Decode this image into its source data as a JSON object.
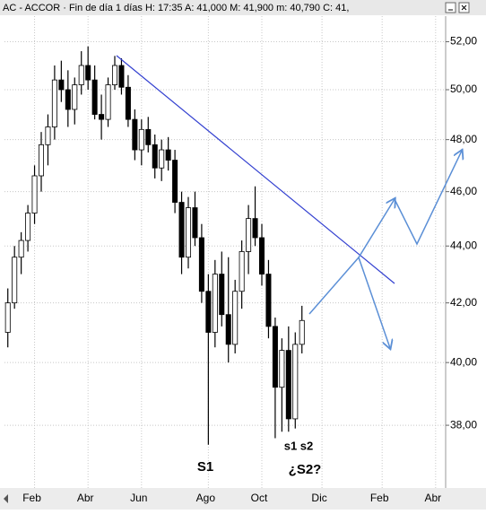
{
  "chart_data": {
    "type": "candlestick",
    "title": "AC - ACCOR · Fin de día 1 días  H: 17:35  A: 41,000  M: 41,900  m: 40,790  C: 41,",
    "categories": [
      null,
      null,
      null,
      null,
      "Feb",
      null,
      null,
      null,
      null,
      null,
      null,
      null,
      "Abr",
      null,
      null,
      null,
      null,
      null,
      null,
      null,
      "Jun",
      null,
      null,
      null,
      null,
      null,
      null,
      null,
      null,
      null,
      "Ago",
      null,
      null,
      null,
      null,
      null,
      null,
      null,
      "Oct",
      null,
      null,
      null,
      null,
      null,
      null,
      null,
      null,
      "Dic",
      null,
      null,
      null,
      null,
      null,
      null,
      null,
      null,
      "Feb",
      null,
      null,
      null,
      null,
      null,
      null,
      null,
      "Abr",
      null
    ],
    "open": [
      41.0,
      42.0,
      43.6,
      44.2,
      45.2,
      46.6,
      47.8,
      48.5,
      50.4,
      50.0,
      49.2,
      50.2,
      51.0,
      50.4,
      49.0,
      48.8,
      50.2,
      51.0,
      50.1,
      48.8,
      47.6,
      48.4,
      47.8,
      46.9,
      47.6,
      47.2,
      45.6,
      43.6,
      45.4,
      44.3,
      42.4,
      41.0,
      43.0,
      41.6,
      40.6,
      42.4,
      43.8,
      45.0,
      44.3,
      43.0,
      41.2,
      39.2,
      40.4,
      38.2,
      40.6,
      null,
      null,
      null,
      null,
      null,
      null,
      null,
      null,
      null,
      null,
      null,
      null,
      null,
      null,
      null,
      null,
      null,
      null,
      null,
      null,
      null
    ],
    "high": [
      42.5,
      44.0,
      44.5,
      45.5,
      47.0,
      48.3,
      49.0,
      51.0,
      51.2,
      50.8,
      50.5,
      51.6,
      51.8,
      51.0,
      49.8,
      50.5,
      51.4,
      51.3,
      50.6,
      49.2,
      48.8,
      48.9,
      48.2,
      48.0,
      48.1,
      47.6,
      46.0,
      45.8,
      46.0,
      44.8,
      43.0,
      43.5,
      43.8,
      43.6,
      42.8,
      44.2,
      45.5,
      46.2,
      44.8,
      43.5,
      41.5,
      40.8,
      41.2,
      41.0,
      41.9,
      null,
      null,
      null,
      null,
      null,
      null,
      null,
      null,
      null,
      null,
      null,
      null,
      null,
      null,
      null,
      null,
      null,
      null,
      null,
      null,
      null
    ],
    "low": [
      40.5,
      41.8,
      43.0,
      43.8,
      44.8,
      46.0,
      47.0,
      48.0,
      49.5,
      48.5,
      48.6,
      49.8,
      50.0,
      48.8,
      48.0,
      48.5,
      50.0,
      49.8,
      48.5,
      47.2,
      47.0,
      47.5,
      46.5,
      46.4,
      46.8,
      45.2,
      43.0,
      43.2,
      44.0,
      42.0,
      37.4,
      40.5,
      41.2,
      40.0,
      40.3,
      41.8,
      43.0,
      44.0,
      42.6,
      40.8,
      37.6,
      37.8,
      37.8,
      37.9,
      40.3,
      null,
      null,
      null,
      null,
      null,
      null,
      null,
      null,
      null,
      null,
      null,
      null,
      null,
      null,
      null,
      null,
      null,
      null,
      null,
      null,
      null
    ],
    "close": [
      42.0,
      43.6,
      44.2,
      45.2,
      46.6,
      47.8,
      48.5,
      50.4,
      50.0,
      49.2,
      50.2,
      51.0,
      50.4,
      49.0,
      48.8,
      50.2,
      51.0,
      50.1,
      48.8,
      47.6,
      48.4,
      47.8,
      46.9,
      47.6,
      47.2,
      45.6,
      43.6,
      45.4,
      44.3,
      42.4,
      41.0,
      43.0,
      41.6,
      40.6,
      42.4,
      43.8,
      45.0,
      44.3,
      43.0,
      41.2,
      39.2,
      40.4,
      38.2,
      40.6,
      41.4,
      null,
      null,
      null,
      null,
      null,
      null,
      null,
      null,
      null,
      null,
      null,
      null,
      null,
      null,
      null,
      null,
      null,
      null,
      null,
      null,
      null
    ],
    "log_scale": true,
    "ylim": [
      36.1,
      53.1
    ],
    "yticks": [
      {
        "value": 38,
        "label": "38,00"
      },
      {
        "value": 40,
        "label": "40,00"
      },
      {
        "value": 42,
        "label": "42,00"
      },
      {
        "value": 44,
        "label": "44,00"
      },
      {
        "value": 46,
        "label": "46,00"
      },
      {
        "value": 48,
        "label": "48,00"
      },
      {
        "value": 50,
        "label": "50,00"
      },
      {
        "value": 52,
        "label": "52,00"
      }
    ],
    "grid": true,
    "annotations": [
      "S1",
      "s1 s2",
      "¿S2?"
    ]
  }
}
